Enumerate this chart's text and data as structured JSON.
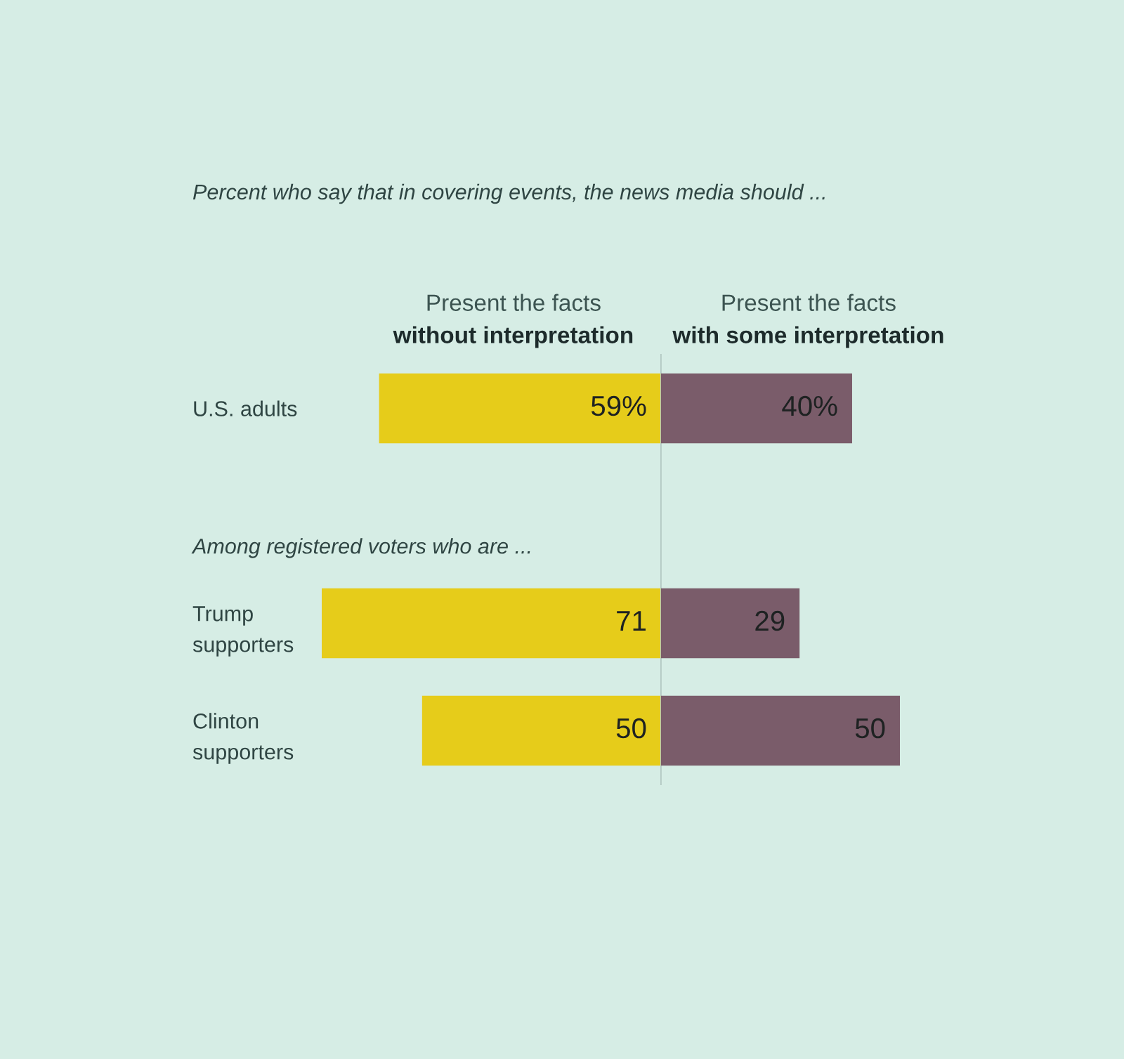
{
  "chart_data": [
    {
      "type": "bar",
      "orientation": "horizontal",
      "title": "Percent who say that in covering events, the news media should ...",
      "categories": [
        "U.S. adults",
        null,
        "Trump\nsupporters",
        "Clinton\nsupporters"
      ],
      "series": [
        {
          "name": "Present the facts\nwithout interpretation",
          "color": "#e6cc1a",
          "values": [
            59,
            null,
            71,
            50
          ],
          "value_labels": [
            "59%",
            null,
            "71",
            "50"
          ]
        }
      ],
      "xlim": [
        71,
        0
      ],
      "annotations": [
        "Among registered voters who are ..."
      ],
      "tick_labels": "y"
    },
    {
      "type": "bar",
      "orientation": "horizontal",
      "categories": [
        null,
        null,
        null,
        null
      ],
      "series": [
        {
          "name": "Present the facts\nwith some interpretation",
          "color": "#7a5c6a",
          "values": [
            40,
            null,
            29,
            50
          ],
          "value_labels": [
            "40%",
            null,
            "29",
            "50"
          ]
        }
      ],
      "xlim": [
        0,
        50
      ],
      "tick_labels": false
    }
  ]
}
